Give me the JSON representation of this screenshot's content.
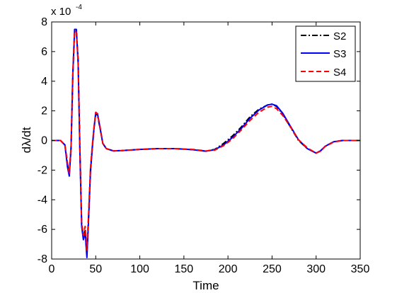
{
  "chart_data": {
    "type": "line",
    "title": "",
    "xlabel": "Time",
    "ylabel": "dλ/dt",
    "y_scale_label": "x 10",
    "y_scale_exponent": "-4",
    "xlim": [
      0,
      350
    ],
    "ylim": [
      -8,
      8
    ],
    "xticks": [
      0,
      50,
      100,
      150,
      200,
      250,
      300,
      350
    ],
    "yticks": [
      -8,
      -6,
      -4,
      -2,
      0,
      2,
      4,
      6,
      8
    ],
    "grid": false,
    "legend_position": "top-right",
    "series": [
      {
        "name": "S2",
        "color": "#000000",
        "style": "dashdot",
        "x": [
          0,
          10,
          15,
          18,
          20,
          22,
          24,
          26,
          28,
          30,
          32,
          34,
          36,
          38,
          40,
          42,
          44,
          46,
          48,
          50,
          52,
          55,
          58,
          62,
          70,
          80,
          100,
          120,
          140,
          160,
          175,
          185,
          195,
          205,
          215,
          225,
          235,
          245,
          250,
          255,
          262,
          270,
          280,
          290,
          300,
          305,
          310,
          320,
          330,
          350
        ],
        "y": [
          0,
          0,
          -0.3,
          -1.6,
          -2.3,
          -0.5,
          4.5,
          7.3,
          7.4,
          5.5,
          -0.5,
          -5.6,
          -6.5,
          -6.0,
          -7.7,
          -5.0,
          -2.0,
          -0.5,
          0.8,
          1.8,
          1.7,
          0.8,
          -0.2,
          -0.55,
          -0.7,
          -0.68,
          -0.6,
          -0.55,
          -0.55,
          -0.62,
          -0.72,
          -0.6,
          -0.2,
          0.3,
          0.9,
          1.6,
          2.1,
          2.4,
          2.45,
          2.3,
          1.8,
          1.0,
          0.0,
          -0.55,
          -0.85,
          -0.7,
          -0.4,
          -0.08,
          0,
          0
        ]
      },
      {
        "name": "S3",
        "color": "#0000ff",
        "style": "solid",
        "x": [
          0,
          10,
          15,
          18,
          20,
          22,
          24,
          26,
          28,
          30,
          32,
          34,
          36,
          38,
          40,
          42,
          44,
          46,
          48,
          50,
          52,
          55,
          58,
          62,
          70,
          80,
          100,
          120,
          140,
          160,
          175,
          185,
          195,
          205,
          215,
          225,
          235,
          245,
          250,
          255,
          262,
          270,
          280,
          290,
          300,
          305,
          310,
          320,
          330,
          350
        ],
        "y": [
          0,
          0,
          -0.3,
          -1.8,
          -2.4,
          -0.5,
          4.4,
          7.5,
          7.5,
          5.2,
          -0.8,
          -5.8,
          -6.7,
          -6.2,
          -7.9,
          -5.2,
          -2.2,
          -0.6,
          0.8,
          1.9,
          1.8,
          0.8,
          -0.2,
          -0.55,
          -0.7,
          -0.68,
          -0.6,
          -0.55,
          -0.55,
          -0.62,
          -0.72,
          -0.62,
          -0.3,
          0.2,
          0.8,
          1.5,
          2.05,
          2.4,
          2.45,
          2.35,
          1.85,
          1.05,
          0.05,
          -0.55,
          -0.85,
          -0.7,
          -0.4,
          -0.08,
          0,
          0
        ]
      },
      {
        "name": "S4",
        "color": "#ff0000",
        "style": "dashed",
        "x": [
          0,
          10,
          15,
          18,
          20,
          22,
          24,
          26,
          28,
          30,
          32,
          34,
          36,
          38,
          40,
          42,
          44,
          46,
          48,
          50,
          52,
          55,
          58,
          62,
          70,
          80,
          100,
          120,
          140,
          160,
          175,
          185,
          195,
          205,
          215,
          225,
          235,
          245,
          250,
          255,
          262,
          270,
          280,
          290,
          300,
          305,
          310,
          320,
          330,
          350
        ],
        "y": [
          0,
          0,
          -0.3,
          -1.5,
          -2.2,
          -0.4,
          4.6,
          7.4,
          7.3,
          5.3,
          -0.6,
          -5.6,
          -6.4,
          -5.8,
          -7.4,
          -4.8,
          -1.9,
          -0.4,
          0.9,
          1.9,
          1.8,
          0.9,
          -0.2,
          -0.55,
          -0.7,
          -0.68,
          -0.6,
          -0.55,
          -0.55,
          -0.6,
          -0.7,
          -0.65,
          -0.35,
          0.1,
          0.7,
          1.35,
          1.9,
          2.25,
          2.3,
          2.15,
          1.7,
          1.0,
          0.05,
          -0.5,
          -0.85,
          -0.72,
          -0.42,
          -0.1,
          0,
          0
        ]
      }
    ]
  }
}
